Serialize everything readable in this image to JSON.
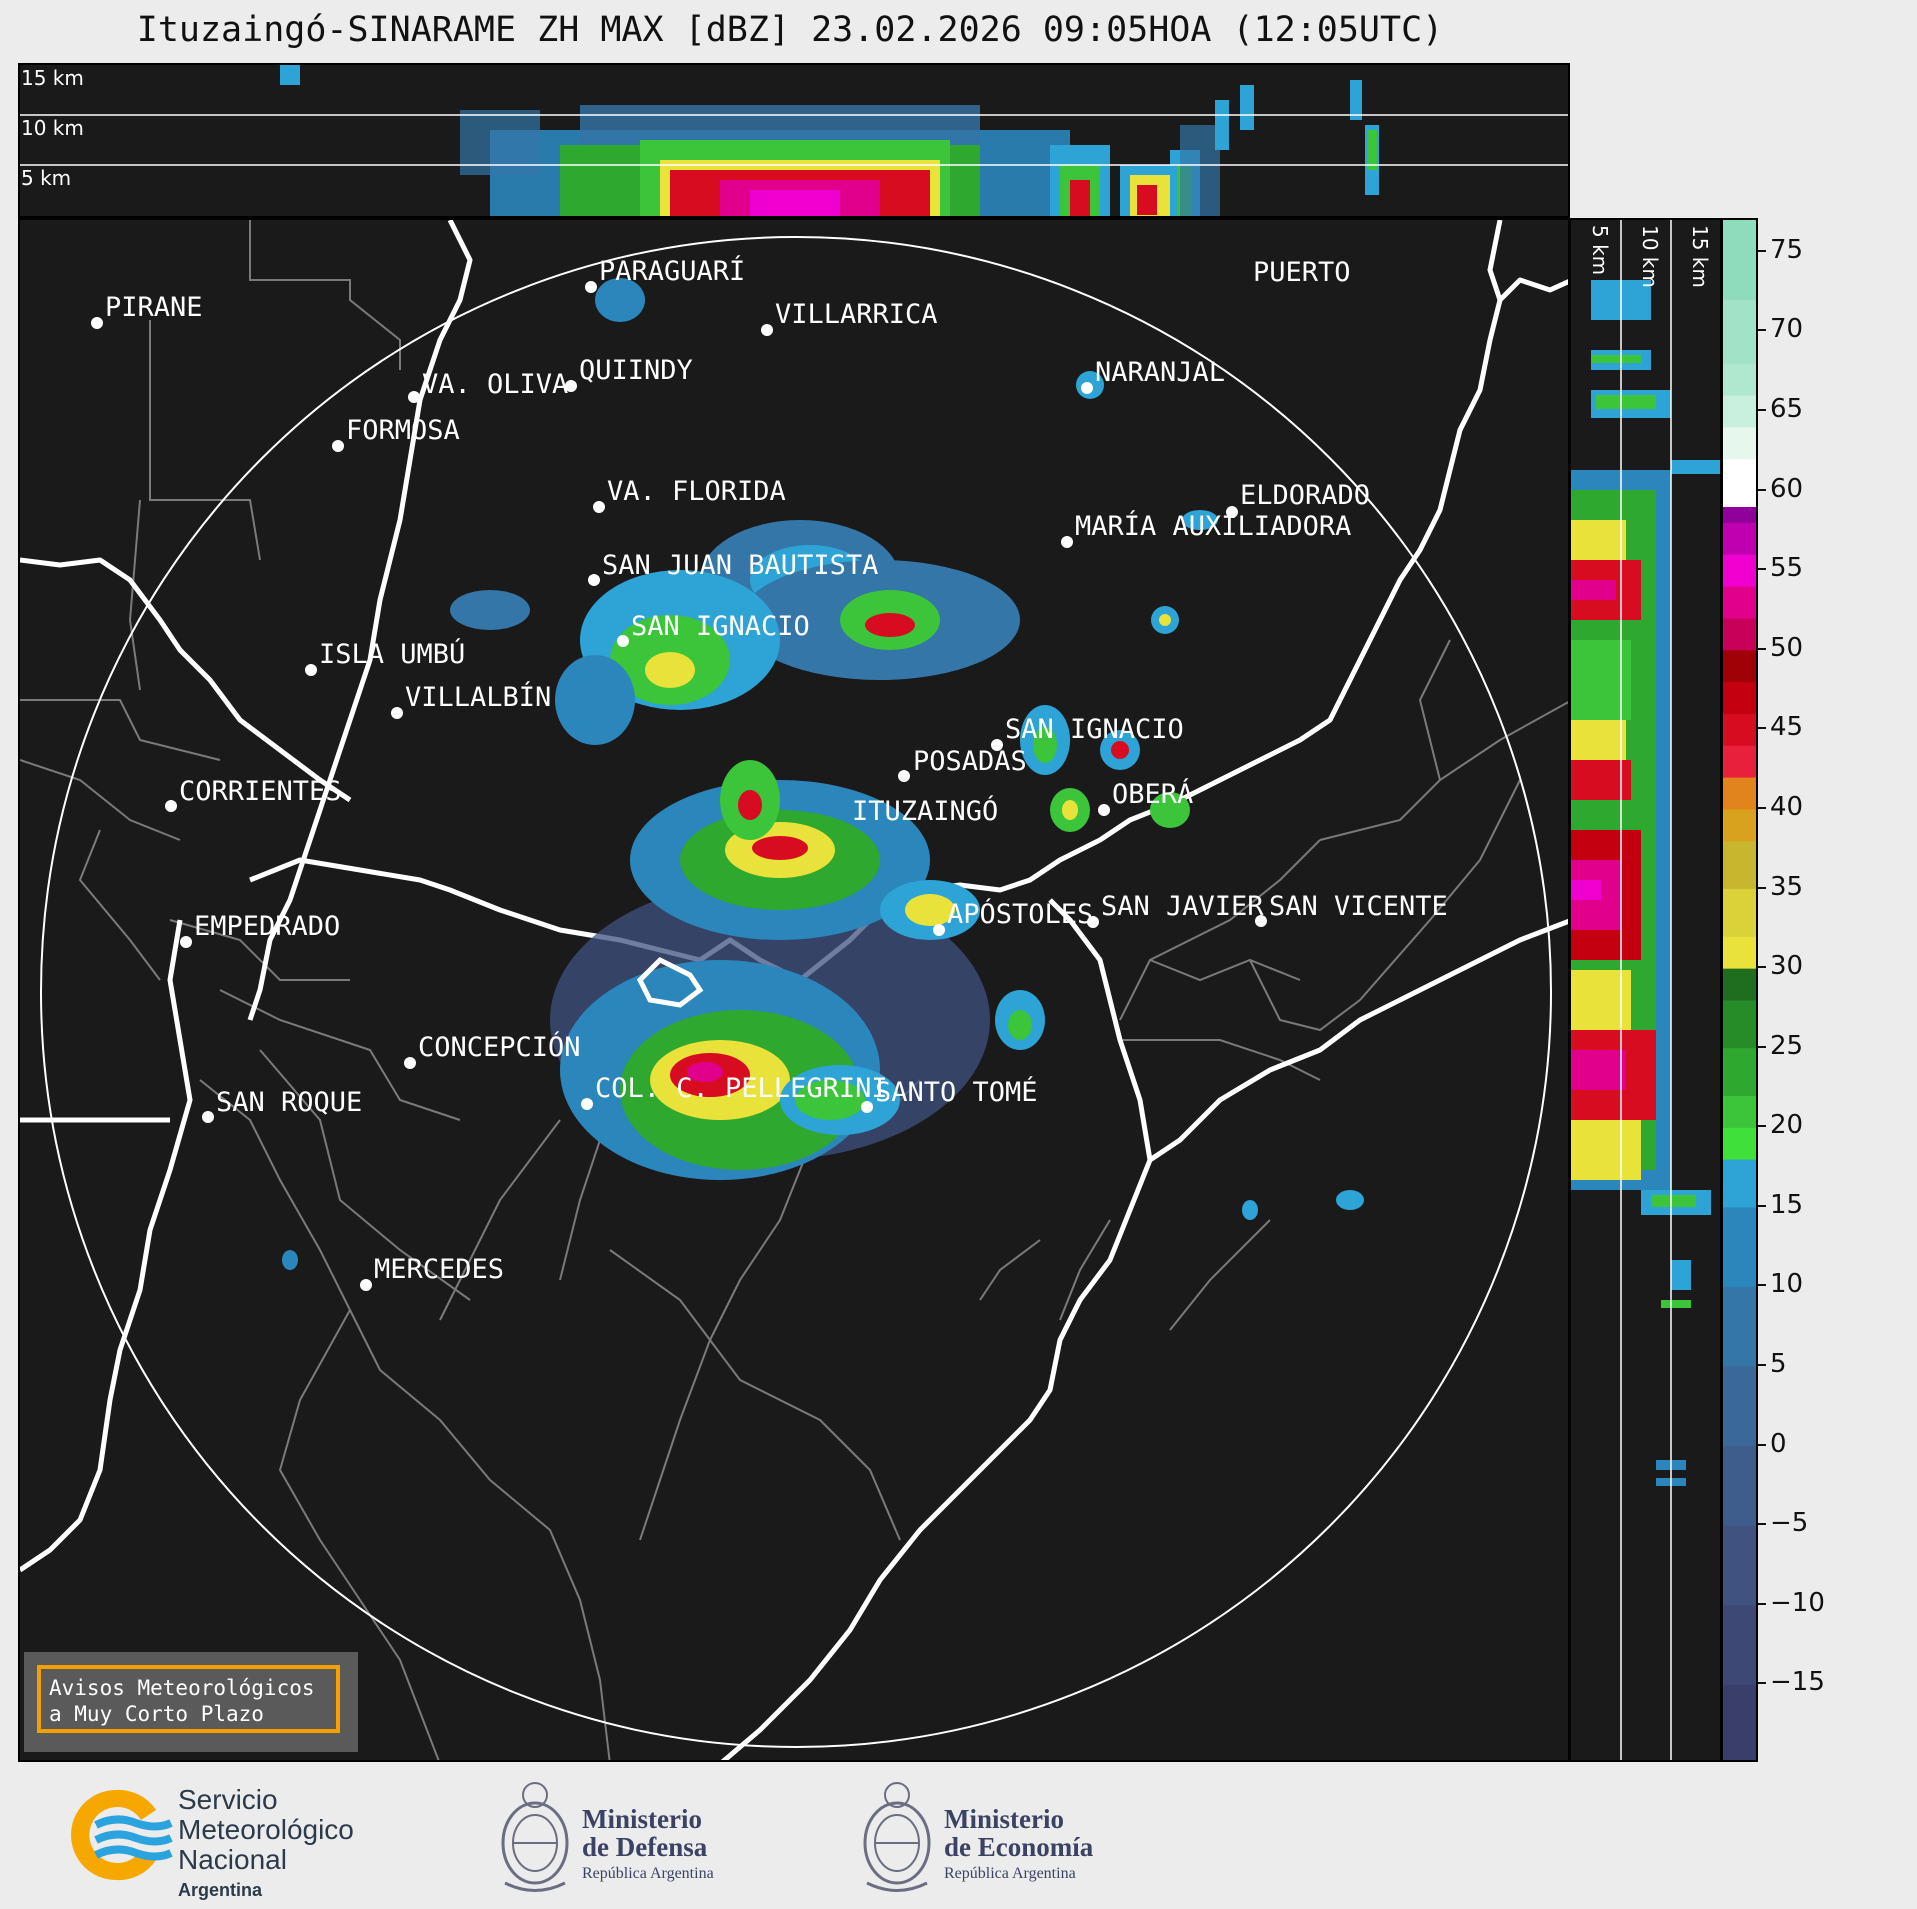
{
  "title": "Ituzaingó-SINARAME ZH MAX [dBZ] 23.02.2026 09:05HOA (12:05UTC)",
  "top_panel": {
    "height_labels": [
      "15 km",
      "10 km",
      "5 km"
    ]
  },
  "side_panel": {
    "height_labels": [
      "5 km",
      "10 km",
      "15 km"
    ]
  },
  "map": {
    "radar_site": "ITUZAINGÓ",
    "cities": [
      {
        "name": "PIRANE"
      },
      {
        "name": "PARAGUARÍ"
      },
      {
        "name": "VILLARRICA"
      },
      {
        "name": "VA. OLIVA"
      },
      {
        "name": "QUIINDY"
      },
      {
        "name": "NARANJAL"
      },
      {
        "name": "FORMOSA"
      },
      {
        "name": "VA. FLORIDA"
      },
      {
        "name": "ELDORADO"
      },
      {
        "name": "MARÍA AUXILIADORA"
      },
      {
        "name": "SAN JUAN BAUTISTA"
      },
      {
        "name": "SAN IGNACIO"
      },
      {
        "name": "ISLA UMBÚ"
      },
      {
        "name": "VILLALBÍN"
      },
      {
        "name": "SAN IGNACIO"
      },
      {
        "name": "POSADAS"
      },
      {
        "name": "CORRIENTES"
      },
      {
        "name": "OBERÁ"
      },
      {
        "name": "EMPEDRADO"
      },
      {
        "name": "APÓSTOLES"
      },
      {
        "name": "SAN JAVIER"
      },
      {
        "name": "SAN VICENTE"
      },
      {
        "name": "CONCEPCIÓN"
      },
      {
        "name": "COL. C. PELLEGRINI"
      },
      {
        "name": "SANTO TOMÉ"
      },
      {
        "name": "SAN ROQUE"
      },
      {
        "name": "MERCEDES"
      },
      {
        "name": "PUERTO"
      }
    ],
    "warning_box": [
      "Avisos Meteorológicos",
      "a Muy Corto Plazo"
    ],
    "colors": {
      "background": "#1a1a1a",
      "rivers": "#ffffff",
      "borders": "#7a7a7a",
      "range_ring": "#ffffff",
      "warning_border": "#f5a000"
    }
  },
  "colorbar": {
    "units": "dBZ",
    "range": [
      -20,
      77
    ],
    "ticks": [
      "75",
      "70",
      "65",
      "60",
      "55",
      "50",
      "45",
      "40",
      "35",
      "30",
      "25",
      "20",
      "15",
      "10",
      "5",
      "0",
      "−5",
      "−10",
      "−15"
    ],
    "tick_values": [
      75,
      70,
      65,
      60,
      55,
      50,
      45,
      40,
      35,
      30,
      25,
      20,
      15,
      10,
      5,
      0,
      -5,
      -10,
      -15
    ],
    "bands": [
      {
        "from": -20,
        "to": -15,
        "color": "#3a3e6a"
      },
      {
        "from": -15,
        "to": -10,
        "color": "#3e4874"
      },
      {
        "from": -10,
        "to": -5,
        "color": "#3f5280"
      },
      {
        "from": -5,
        "to": 0,
        "color": "#3e5d8c"
      },
      {
        "from": 0,
        "to": 5,
        "color": "#3a6898"
      },
      {
        "from": 5,
        "to": 10,
        "color": "#3476a8"
      },
      {
        "from": 10,
        "to": 15,
        "color": "#2b86bb"
      },
      {
        "from": 15,
        "to": 18,
        "color": "#2da3d6"
      },
      {
        "from": 18,
        "to": 20,
        "color": "#3fe03a"
      },
      {
        "from": 20,
        "to": 22,
        "color": "#3cc43a"
      },
      {
        "from": 22,
        "to": 25,
        "color": "#2ea82e"
      },
      {
        "from": 25,
        "to": 28,
        "color": "#268c28"
      },
      {
        "from": 28,
        "to": 30,
        "color": "#1f6e1f"
      },
      {
        "from": 30,
        "to": 32,
        "color": "#e9e23a"
      },
      {
        "from": 32,
        "to": 35,
        "color": "#d9d239"
      },
      {
        "from": 35,
        "to": 38,
        "color": "#c8b62e"
      },
      {
        "from": 38,
        "to": 40,
        "color": "#d8a21e"
      },
      {
        "from": 40,
        "to": 42,
        "color": "#e2841c"
      },
      {
        "from": 42,
        "to": 44,
        "color": "#e8203c"
      },
      {
        "from": 44,
        "to": 46,
        "color": "#d80c20"
      },
      {
        "from": 46,
        "to": 48,
        "color": "#c40010"
      },
      {
        "from": 48,
        "to": 50,
        "color": "#a00008"
      },
      {
        "from": 50,
        "to": 52,
        "color": "#c8005a"
      },
      {
        "from": 52,
        "to": 54,
        "color": "#e0008c"
      },
      {
        "from": 54,
        "to": 56,
        "color": "#f000d0"
      },
      {
        "from": 56,
        "to": 58,
        "color": "#c000b0"
      },
      {
        "from": 58,
        "to": 59,
        "color": "#90009a"
      },
      {
        "from": 59,
        "to": 62,
        "color": "#ffffff"
      },
      {
        "from": 62,
        "to": 64,
        "color": "#e6f7ee"
      },
      {
        "from": 64,
        "to": 66,
        "color": "#c9efde"
      },
      {
        "from": 66,
        "to": 68,
        "color": "#b0e8cf"
      },
      {
        "from": 68,
        "to": 72,
        "color": "#a2e3c8"
      },
      {
        "from": 72,
        "to": 77,
        "color": "#8fdcbc"
      }
    ]
  },
  "footer": {
    "smn": {
      "line1": "Servicio",
      "line2": "Meteorológico",
      "line3": "Nacional",
      "line4": "Argentina"
    },
    "defensa": {
      "line1": "Ministerio",
      "line2": "de Defensa",
      "line3": "República Argentina"
    },
    "economia": {
      "line1": "Ministerio",
      "line2": "de Economía",
      "line3": "República Argentina"
    }
  }
}
